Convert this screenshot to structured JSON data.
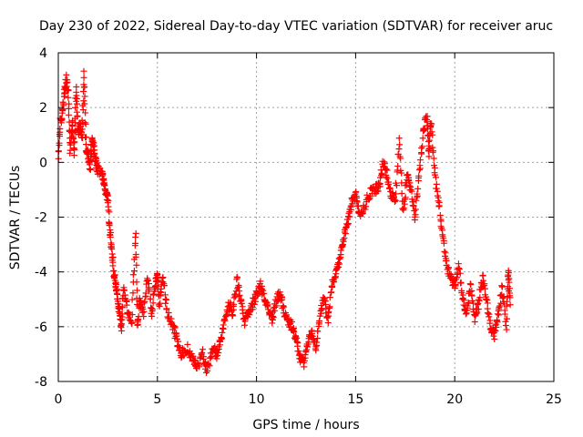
{
  "chart_data": {
    "type": "scatter",
    "title": "Day 230 of 2022, Sidereal Day-to-day VTEC variation (SDTVAR) for receiver aruc",
    "xlabel": "GPS time / hours",
    "ylabel": "SDTVAR / TECUs",
    "xlim": [
      0,
      25
    ],
    "ylim": [
      -8,
      4
    ],
    "xticks": [
      0,
      5,
      10,
      15,
      20,
      25
    ],
    "yticks": [
      -8,
      -6,
      -4,
      -2,
      0,
      2,
      4
    ],
    "xtick_labels": [
      "0",
      "5",
      "10",
      "15",
      "20",
      "25"
    ],
    "ytick_labels": [
      "-8",
      "-6",
      "-4",
      "-2",
      "0",
      "2",
      "4"
    ],
    "grid": true,
    "marker": "+",
    "color": "#ff0000",
    "series": [
      {
        "name": "SDTVAR",
        "profile": [
          [
            0.0,
            0.1
          ],
          [
            0.1,
            1.5
          ],
          [
            0.2,
            1.7
          ],
          [
            0.3,
            2.5
          ],
          [
            0.4,
            3.1
          ],
          [
            0.5,
            2.5
          ],
          [
            0.6,
            0.5
          ],
          [
            0.7,
            1.5
          ],
          [
            0.8,
            0.3
          ],
          [
            0.9,
            2.7
          ],
          [
            1.0,
            1.0
          ],
          [
            1.1,
            1.4
          ],
          [
            1.2,
            0.9
          ],
          [
            1.3,
            3.2
          ],
          [
            1.4,
            0.5
          ],
          [
            1.5,
            0.3
          ],
          [
            1.6,
            -0.2
          ],
          [
            1.7,
            0.8
          ],
          [
            1.8,
            0.5
          ],
          [
            1.9,
            0.0
          ],
          [
            2.0,
            -0.3
          ],
          [
            2.2,
            -0.3
          ],
          [
            2.3,
            -0.8
          ],
          [
            2.4,
            -1.2
          ],
          [
            2.5,
            -1.3
          ],
          [
            2.6,
            -2.5
          ],
          [
            2.7,
            -3.2
          ],
          [
            2.8,
            -4.0
          ],
          [
            2.9,
            -4.5
          ],
          [
            3.0,
            -5.0
          ],
          [
            3.1,
            -5.5
          ],
          [
            3.2,
            -6.0
          ],
          [
            3.3,
            -4.5
          ],
          [
            3.5,
            -5.5
          ],
          [
            3.7,
            -5.8
          ],
          [
            3.9,
            -2.5
          ],
          [
            4.0,
            -6.0
          ],
          [
            4.1,
            -5.0
          ],
          [
            4.3,
            -5.5
          ],
          [
            4.5,
            -4.2
          ],
          [
            4.7,
            -5.5
          ],
          [
            4.9,
            -4.5
          ],
          [
            5.0,
            -4.0
          ],
          [
            5.1,
            -5.2
          ],
          [
            5.3,
            -4.2
          ],
          [
            5.5,
            -5.5
          ],
          [
            5.8,
            -6.0
          ],
          [
            6.0,
            -6.5
          ],
          [
            6.2,
            -7.0
          ],
          [
            6.5,
            -6.8
          ],
          [
            6.8,
            -7.2
          ],
          [
            7.0,
            -7.5
          ],
          [
            7.3,
            -7.0
          ],
          [
            7.5,
            -7.6
          ],
          [
            7.8,
            -6.8
          ],
          [
            8.0,
            -7.0
          ],
          [
            8.2,
            -6.5
          ],
          [
            8.4,
            -5.8
          ],
          [
            8.6,
            -5.2
          ],
          [
            8.8,
            -5.5
          ],
          [
            9.0,
            -4.3
          ],
          [
            9.2,
            -5.0
          ],
          [
            9.4,
            -5.8
          ],
          [
            9.6,
            -5.5
          ],
          [
            9.8,
            -5.2
          ],
          [
            10.0,
            -4.8
          ],
          [
            10.2,
            -4.5
          ],
          [
            10.4,
            -5.0
          ],
          [
            10.6,
            -5.3
          ],
          [
            10.8,
            -5.8
          ],
          [
            11.0,
            -5.0
          ],
          [
            11.2,
            -4.8
          ],
          [
            11.4,
            -5.5
          ],
          [
            11.6,
            -5.8
          ],
          [
            11.8,
            -6.0
          ],
          [
            12.0,
            -6.5
          ],
          [
            12.2,
            -7.2
          ],
          [
            12.4,
            -7.3
          ],
          [
            12.6,
            -6.5
          ],
          [
            12.8,
            -6.3
          ],
          [
            13.0,
            -6.8
          ],
          [
            13.2,
            -5.5
          ],
          [
            13.4,
            -5.0
          ],
          [
            13.6,
            -5.8
          ],
          [
            13.8,
            -4.5
          ],
          [
            14.0,
            -4.0
          ],
          [
            14.2,
            -3.5
          ],
          [
            14.4,
            -2.8
          ],
          [
            14.6,
            -2.2
          ],
          [
            14.8,
            -1.5
          ],
          [
            15.0,
            -1.2
          ],
          [
            15.2,
            -2.0
          ],
          [
            15.5,
            -1.5
          ],
          [
            15.8,
            -1.0
          ],
          [
            16.0,
            -1.0
          ],
          [
            16.2,
            -0.8
          ],
          [
            16.4,
            0.0
          ],
          [
            16.6,
            -0.5
          ],
          [
            16.8,
            -1.2
          ],
          [
            17.0,
            -1.3
          ],
          [
            17.2,
            0.8
          ],
          [
            17.4,
            -1.8
          ],
          [
            17.6,
            -0.5
          ],
          [
            17.8,
            -1.0
          ],
          [
            18.0,
            -2.0
          ],
          [
            18.2,
            -0.5
          ],
          [
            18.4,
            1.0
          ],
          [
            18.6,
            1.8
          ],
          [
            18.7,
            0.3
          ],
          [
            18.8,
            1.5
          ],
          [
            19.0,
            -0.5
          ],
          [
            19.2,
            -1.5
          ],
          [
            19.4,
            -2.8
          ],
          [
            19.6,
            -3.8
          ],
          [
            19.8,
            -4.2
          ],
          [
            20.0,
            -4.5
          ],
          [
            20.2,
            -3.8
          ],
          [
            20.4,
            -5.0
          ],
          [
            20.6,
            -5.5
          ],
          [
            20.8,
            -4.5
          ],
          [
            21.0,
            -5.8
          ],
          [
            21.2,
            -5.2
          ],
          [
            21.4,
            -4.2
          ],
          [
            21.6,
            -5.0
          ],
          [
            21.8,
            -6.0
          ],
          [
            22.0,
            -6.3
          ],
          [
            22.2,
            -5.5
          ],
          [
            22.4,
            -4.5
          ],
          [
            22.6,
            -6.0
          ],
          [
            22.7,
            -3.9
          ],
          [
            22.8,
            -5.2
          ]
        ]
      }
    ]
  }
}
